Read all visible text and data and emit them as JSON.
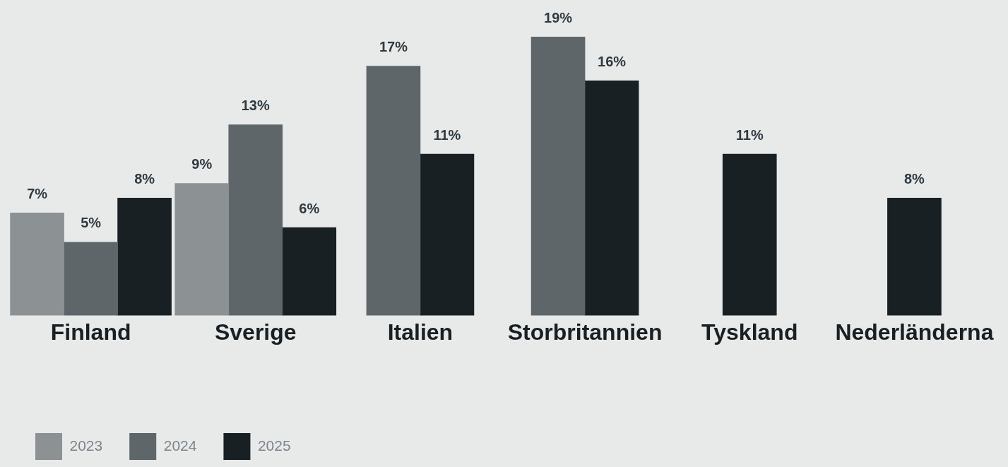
{
  "chart_data": {
    "type": "bar",
    "categories": [
      "Finland",
      "Sverige",
      "Italien",
      "Storbritannien",
      "Tyskland",
      "Nederländerna"
    ],
    "series": [
      {
        "name": "2023",
        "color": "#8c9294",
        "values": [
          7,
          9,
          null,
          null,
          null,
          null
        ],
        "value_labels": [
          "7%",
          "9%",
          null,
          null,
          null,
          null
        ]
      },
      {
        "name": "2024",
        "color": "#5f666a",
        "values": [
          5,
          13,
          17,
          19,
          null,
          null
        ],
        "value_labels": [
          "5%",
          "13%",
          "17%",
          "19%",
          null,
          null
        ]
      },
      {
        "name": "2025",
        "color": "#182024",
        "values": [
          8,
          6,
          11,
          16,
          11,
          8
        ],
        "value_labels": [
          "8%",
          "6%",
          "11%",
          "16%",
          "11%",
          "8%"
        ]
      }
    ],
    "legend": "bottom left",
    "grid": false
  }
}
